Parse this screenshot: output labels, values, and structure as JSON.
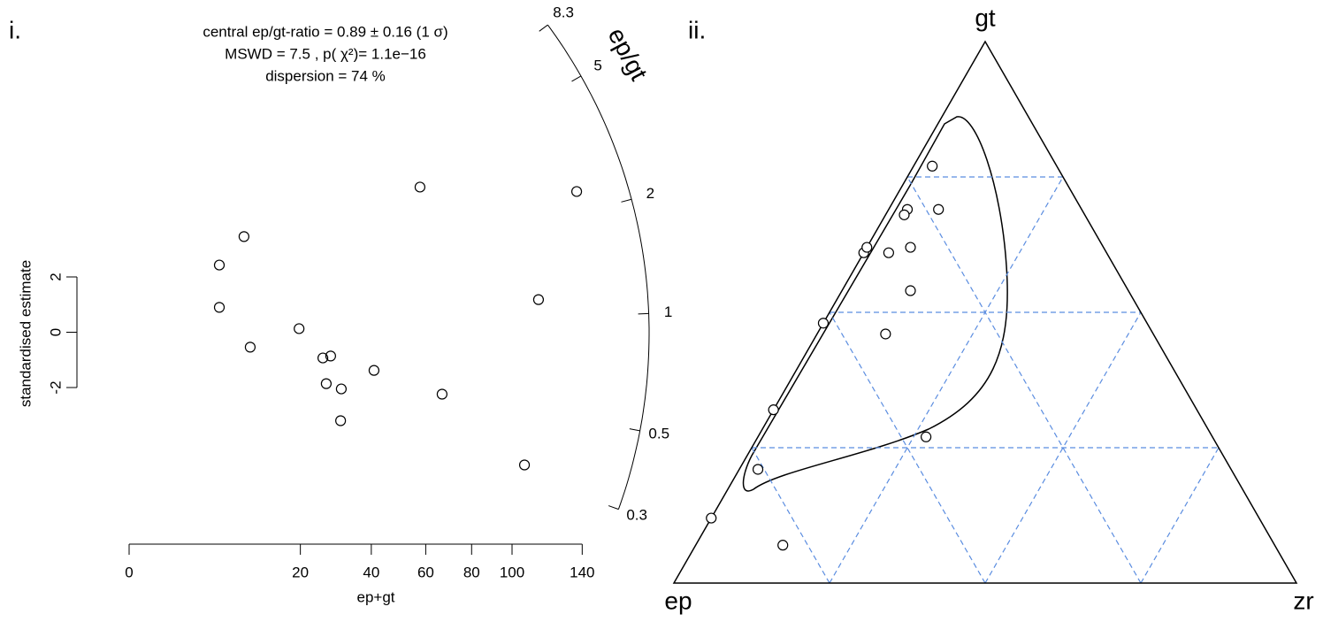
{
  "chart_data": [
    {
      "type": "radial",
      "panel": "i.",
      "title_lines": [
        "central ep/gt-ratio = 0.89 ± 0.16 (1 σ)",
        "MSWD = 7.5 , p( χ²)= 1.1e−16",
        "dispersion = 74 %"
      ],
      "x_label": "ep+gt",
      "y_label": "standardised estimate",
      "z_label": "ep/gt",
      "xscale": "sqrt",
      "xlim": [
        0,
        140
      ],
      "xticks": [
        0,
        20,
        40,
        60,
        80,
        100,
        140
      ],
      "ylim": [
        -2,
        2
      ],
      "yticks": [
        -2,
        0,
        2
      ],
      "zlim": [
        0.3,
        8.3
      ],
      "zticks": [
        0.3,
        0.5,
        1,
        2,
        5,
        8.3
      ],
      "central_ratio": 0.89,
      "x": [
        5.55,
        5.55,
        9.0,
        10.0,
        19.7,
        25.6,
        27.7,
        26.5,
        30.7,
        30.5,
        40.9,
        57.7,
        66.8,
        106.6,
        114.3,
        136.6
      ],
      "y": [
        2.43,
        0.9,
        3.46,
        -0.54,
        0.13,
        -0.93,
        -0.86,
        -1.86,
        -2.05,
        -3.2,
        -1.38,
        5.25,
        -2.24,
        -4.8,
        1.18,
        5.09
      ]
    },
    {
      "type": "ternary",
      "panel": "ii.",
      "vertex_labels": {
        "top": "gt",
        "left": "ep",
        "right": "zr"
      },
      "grid": true,
      "grid_color": "#5b8de0",
      "points": {
        "gt": [
          0.77,
          0.69,
          0.69,
          0.68,
          0.61,
          0.62,
          0.61,
          0.62,
          0.54,
          0.48,
          0.46,
          0.32,
          0.27,
          0.21,
          0.12,
          0.07
        ],
        "ep": [
          0.2,
          0.23,
          0.28,
          0.29,
          0.39,
          0.38,
          0.35,
          0.31,
          0.35,
          0.52,
          0.43,
          0.68,
          0.46,
          0.76,
          0.88,
          0.79
        ],
        "zr": [
          0.03,
          0.08,
          0.03,
          0.03,
          0,
          0,
          0.04,
          0.07,
          0.11,
          0,
          0.11,
          0,
          0.27,
          0.03,
          0,
          0.14
        ]
      }
    }
  ]
}
